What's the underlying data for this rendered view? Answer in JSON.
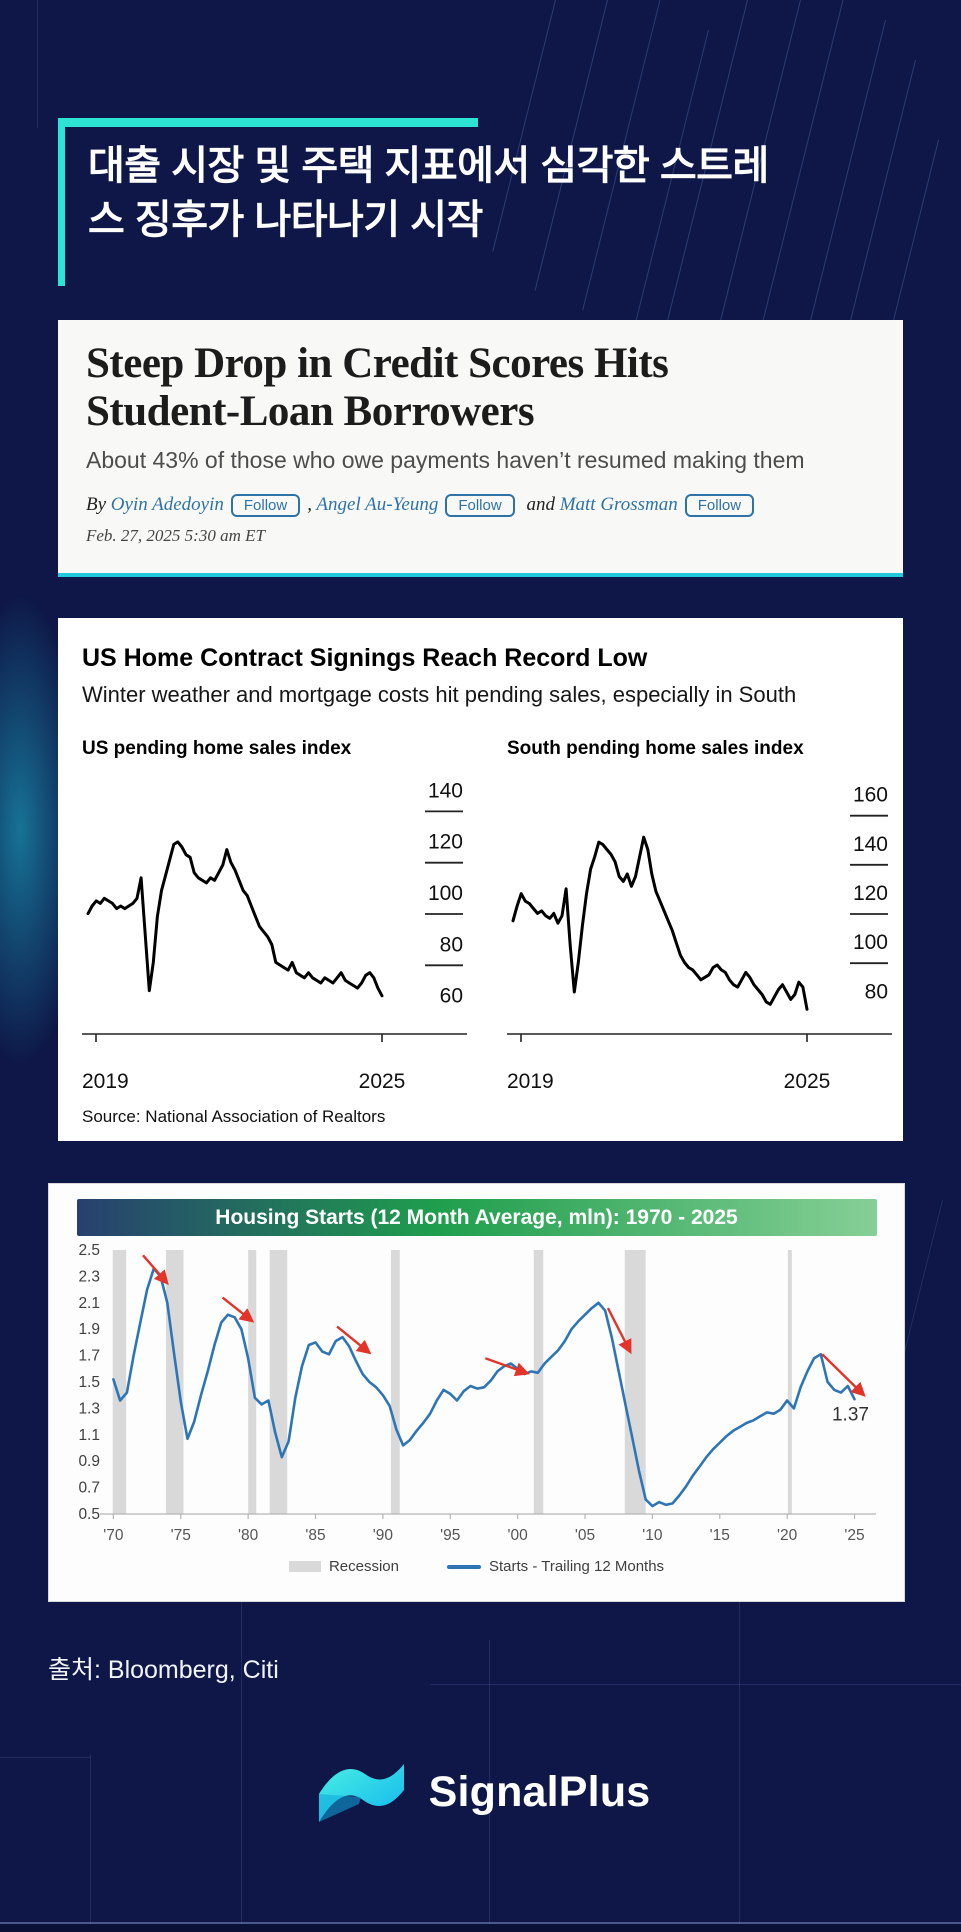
{
  "header": {
    "title_line1": "대출 시장 및 주택 지표에서 심각한 스트레",
    "title_line2": "스 징후가 나타나기 시작"
  },
  "article": {
    "headline_line1": "Steep Drop in Credit Scores Hits",
    "headline_line2": "Student-Loan Borrowers",
    "subhead": "About 43% of those who owe payments haven’t resumed making them",
    "byline_prefix": "By",
    "authors": [
      {
        "name": "Oyin Adedoyin",
        "follow": "Follow"
      },
      {
        "name": "Angel Au-Yeung",
        "follow": "Follow"
      },
      {
        "name": "Matt Grossman",
        "follow": "Follow"
      }
    ],
    "separator1": ",",
    "separator2": "and",
    "date": "Feb. 27, 2025 5:30 am ET"
  },
  "nar": {
    "title": "US Home Contract Signings Reach Record Low",
    "subtitle": "Winter weather and mortgage costs hit pending sales, especially in South",
    "chart1_label": "US pending home sales index",
    "chart2_label": "South pending home sales index",
    "source": "Source: National Association of Realtors"
  },
  "housing": {
    "title": "Housing Starts (12 Month Average, mln): 1970 - 2025",
    "legend_recession": "Recession",
    "legend_series": "Starts - Trailing 12 Months"
  },
  "footer": {
    "source_caption": "출처: Bloomberg, Citi",
    "logo_text": "SignalPlus"
  },
  "colors": {
    "background": "#0e1747",
    "accent_teal": "#2de4d4",
    "wsj_link_blue": "#2e73a8",
    "housing_line_blue": "#2e75b6",
    "arrow_red": "#e3342a",
    "recession_gray": "#d9d9d9"
  },
  "chart_data": [
    {
      "type": "line",
      "style": "nar",
      "title": "US pending home sales index",
      "x": [
        2019,
        2025
      ],
      "xticks": [
        "2019",
        "2025"
      ],
      "ylim": [
        54,
        146
      ],
      "yticks": [
        140,
        120,
        100,
        80,
        60
      ],
      "values": [
        97,
        100,
        102,
        101,
        103,
        102,
        101,
        99,
        100,
        99,
        100,
        101,
        103,
        111,
        89,
        67,
        78,
        96,
        106,
        112,
        118,
        124,
        125,
        123,
        120,
        119,
        113,
        111,
        110,
        109,
        111,
        110,
        113,
        116,
        122,
        117,
        114,
        110,
        106,
        104,
        100,
        96,
        92,
        90,
        88,
        85,
        78,
        77,
        76,
        75,
        78,
        74,
        73,
        72,
        74,
        72,
        71,
        70,
        72,
        71,
        70,
        72,
        74,
        71,
        70,
        69,
        68,
        70,
        73,
        74,
        72,
        68,
        65
      ]
    },
    {
      "type": "line",
      "style": "nar",
      "title": "South pending home sales index",
      "x": [
        2019,
        2025
      ],
      "xticks": [
        "2019",
        "2025"
      ],
      "ylim": [
        72,
        168
      ],
      "yticks": [
        160,
        140,
        120,
        100,
        80
      ],
      "values": [
        114,
        120,
        125,
        122,
        121,
        119,
        117,
        118,
        116,
        115,
        117,
        113,
        116,
        127,
        104,
        85,
        97,
        112,
        125,
        135,
        140,
        146,
        145,
        143,
        141,
        138,
        132,
        130,
        133,
        128,
        132,
        140,
        148,
        143,
        133,
        126,
        122,
        118,
        114,
        110,
        105,
        100,
        97,
        95,
        94,
        92,
        90,
        91,
        92,
        95,
        96,
        94,
        93,
        90,
        88,
        87,
        90,
        93,
        91,
        88,
        86,
        84,
        81,
        80,
        83,
        86,
        88,
        85,
        82,
        84,
        89,
        87,
        78
      ]
    },
    {
      "type": "line",
      "style": "excel",
      "title": "Housing Starts (12 Month Average, mln): 1970 - 2025",
      "x": [
        1969.6,
        2026.0
      ],
      "x_start": 1970,
      "x_step": 0.5,
      "ylim": [
        0.5,
        2.5
      ],
      "yticks": [
        2.5,
        2.3,
        2.1,
        1.9,
        1.7,
        1.5,
        1.3,
        1.1,
        0.9,
        0.7,
        0.5
      ],
      "xticks": [
        {
          "v": 1970,
          "l": "'70"
        },
        {
          "v": 1975,
          "l": "'75"
        },
        {
          "v": 1980,
          "l": "'80"
        },
        {
          "v": 1985,
          "l": "'85"
        },
        {
          "v": 1990,
          "l": "'90"
        },
        {
          "v": 1995,
          "l": "'95"
        },
        {
          "v": 2000,
          "l": "'00"
        },
        {
          "v": 2005,
          "l": "'05"
        },
        {
          "v": 2010,
          "l": "'10"
        },
        {
          "v": 2015,
          "l": "'15"
        },
        {
          "v": 2020,
          "l": "'20"
        },
        {
          "v": 2025,
          "l": "'25"
        }
      ],
      "recessions": [
        [
          1969.95,
          1970.95
        ],
        [
          1973.9,
          1975.2
        ],
        [
          1980.0,
          1980.6
        ],
        [
          1981.6,
          1982.9
        ],
        [
          1990.6,
          1991.25
        ],
        [
          2001.2,
          2001.9
        ],
        [
          2007.95,
          2009.5
        ],
        [
          2020.05,
          2020.35
        ]
      ],
      "arrows": [
        [
          1972.2,
          2.46,
          1973.9,
          2.26
        ],
        [
          1978.1,
          2.14,
          1980.2,
          1.97
        ],
        [
          1986.6,
          1.92,
          1988.9,
          1.73
        ],
        [
          1997.6,
          1.68,
          2000.6,
          1.57
        ],
        [
          2006.7,
          2.06,
          2008.3,
          1.74
        ],
        [
          2022.6,
          1.71,
          2025.6,
          1.41
        ]
      ],
      "annotation": {
        "x": 2024.7,
        "y": 1.21,
        "text": "1.37"
      },
      "legend": [
        "Recession",
        "Starts - Trailing 12 Months"
      ],
      "values": [
        1.52,
        1.36,
        1.42,
        1.7,
        1.95,
        2.2,
        2.36,
        2.3,
        2.1,
        1.72,
        1.35,
        1.07,
        1.2,
        1.4,
        1.58,
        1.78,
        1.95,
        2.01,
        1.99,
        1.9,
        1.68,
        1.38,
        1.33,
        1.36,
        1.12,
        0.93,
        1.05,
        1.38,
        1.62,
        1.78,
        1.8,
        1.73,
        1.71,
        1.81,
        1.84,
        1.77,
        1.66,
        1.56,
        1.5,
        1.46,
        1.4,
        1.32,
        1.14,
        1.02,
        1.06,
        1.13,
        1.19,
        1.26,
        1.36,
        1.44,
        1.41,
        1.36,
        1.43,
        1.47,
        1.45,
        1.46,
        1.51,
        1.58,
        1.62,
        1.64,
        1.6,
        1.56,
        1.58,
        1.57,
        1.64,
        1.69,
        1.74,
        1.81,
        1.9,
        1.96,
        2.01,
        2.06,
        2.1,
        2.04,
        1.83,
        1.58,
        1.33,
        1.08,
        0.83,
        0.61,
        0.56,
        0.59,
        0.57,
        0.58,
        0.64,
        0.71,
        0.79,
        0.86,
        0.93,
        0.99,
        1.04,
        1.09,
        1.13,
        1.16,
        1.19,
        1.21,
        1.24,
        1.27,
        1.26,
        1.29,
        1.36,
        1.3,
        1.46,
        1.58,
        1.68,
        1.71,
        1.5,
        1.44,
        1.42,
        1.47,
        1.37
      ]
    }
  ]
}
